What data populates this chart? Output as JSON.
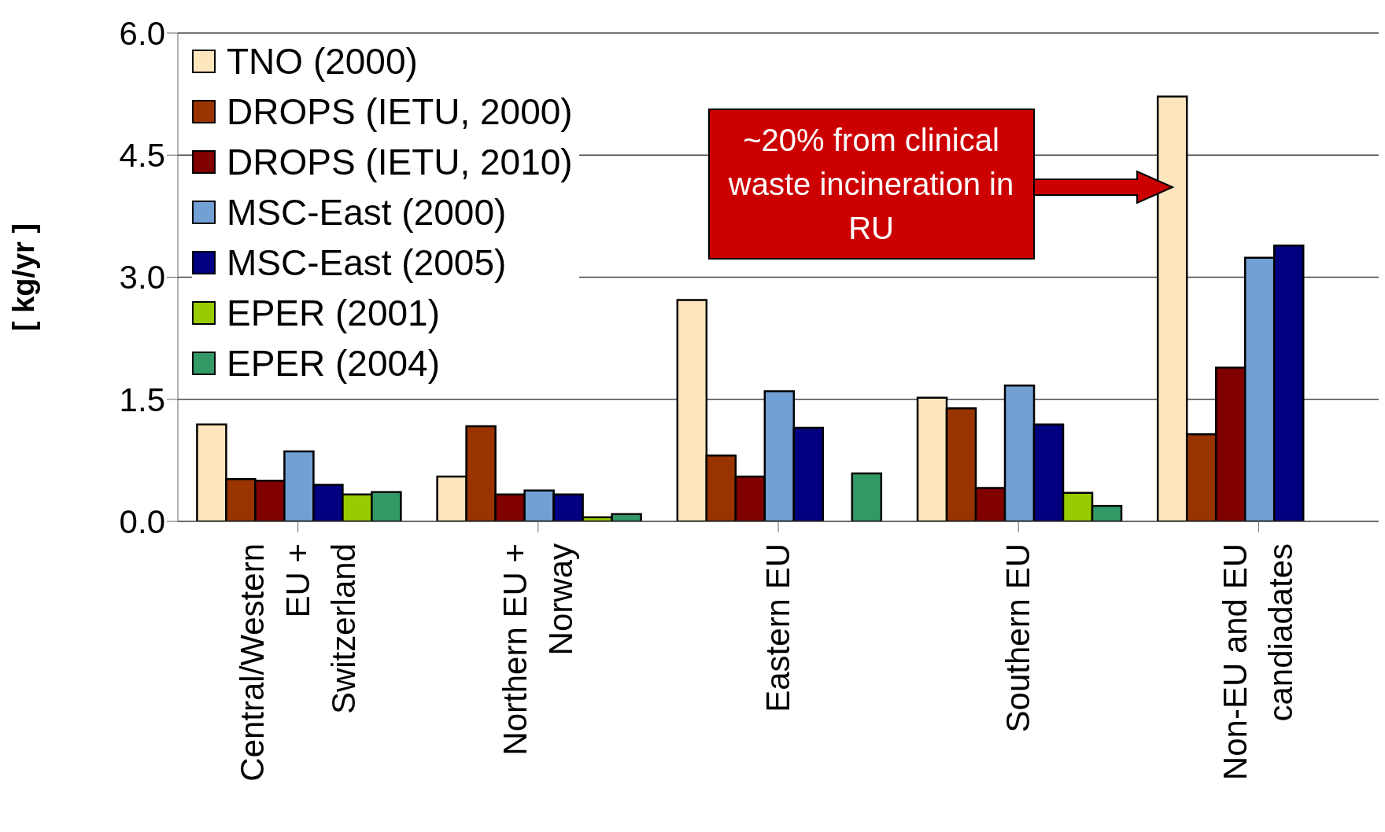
{
  "chart_data": {
    "type": "bar",
    "ylabel": "[ kg/yr ]",
    "categories": [
      "Central/Western EU + Switzerland",
      "Northern EU + Norway",
      "Eastern EU",
      "Southern EU",
      "Non-EU and EU candiadates"
    ],
    "series": [
      {
        "name": "TNO (2000)",
        "color": "#fde6bd",
        "values": [
          1.19,
          0.55,
          2.72,
          1.52,
          5.22
        ]
      },
      {
        "name": "DROPS (IETU, 2000)",
        "color": "#993300",
        "values": [
          0.52,
          1.17,
          0.81,
          1.39,
          1.07
        ]
      },
      {
        "name": "DROPS (IETU, 2010)",
        "color": "#800000",
        "values": [
          0.5,
          0.33,
          0.55,
          0.41,
          1.89
        ]
      },
      {
        "name": "MSC-East (2000)",
        "color": "#729fd4",
        "values": [
          0.86,
          0.38,
          1.6,
          1.67,
          3.24
        ]
      },
      {
        "name": "MSC-East (2005)",
        "color": "#000080",
        "values": [
          0.45,
          0.33,
          1.15,
          1.19,
          3.39
        ]
      },
      {
        "name": "EPER (2001)",
        "color": "#99cc00",
        "values": [
          0.33,
          0.05,
          null,
          0.35,
          null
        ]
      },
      {
        "name": "EPER (2004)",
        "color": "#339966",
        "values": [
          0.36,
          0.09,
          0.59,
          0.19,
          null
        ]
      }
    ],
    "ylim": [
      0,
      6
    ],
    "yticks": [
      {
        "value": 0,
        "label": "0.0"
      },
      {
        "value": 1.5,
        "label": "1.5"
      },
      {
        "value": 3,
        "label": "3.0"
      },
      {
        "value": 4.5,
        "label": "4.5"
      },
      {
        "value": 6,
        "label": "6.0"
      }
    ],
    "grid": "y",
    "legend": "top left",
    "annotations": [
      "~20% from clinical waste incineration in RU"
    ]
  }
}
